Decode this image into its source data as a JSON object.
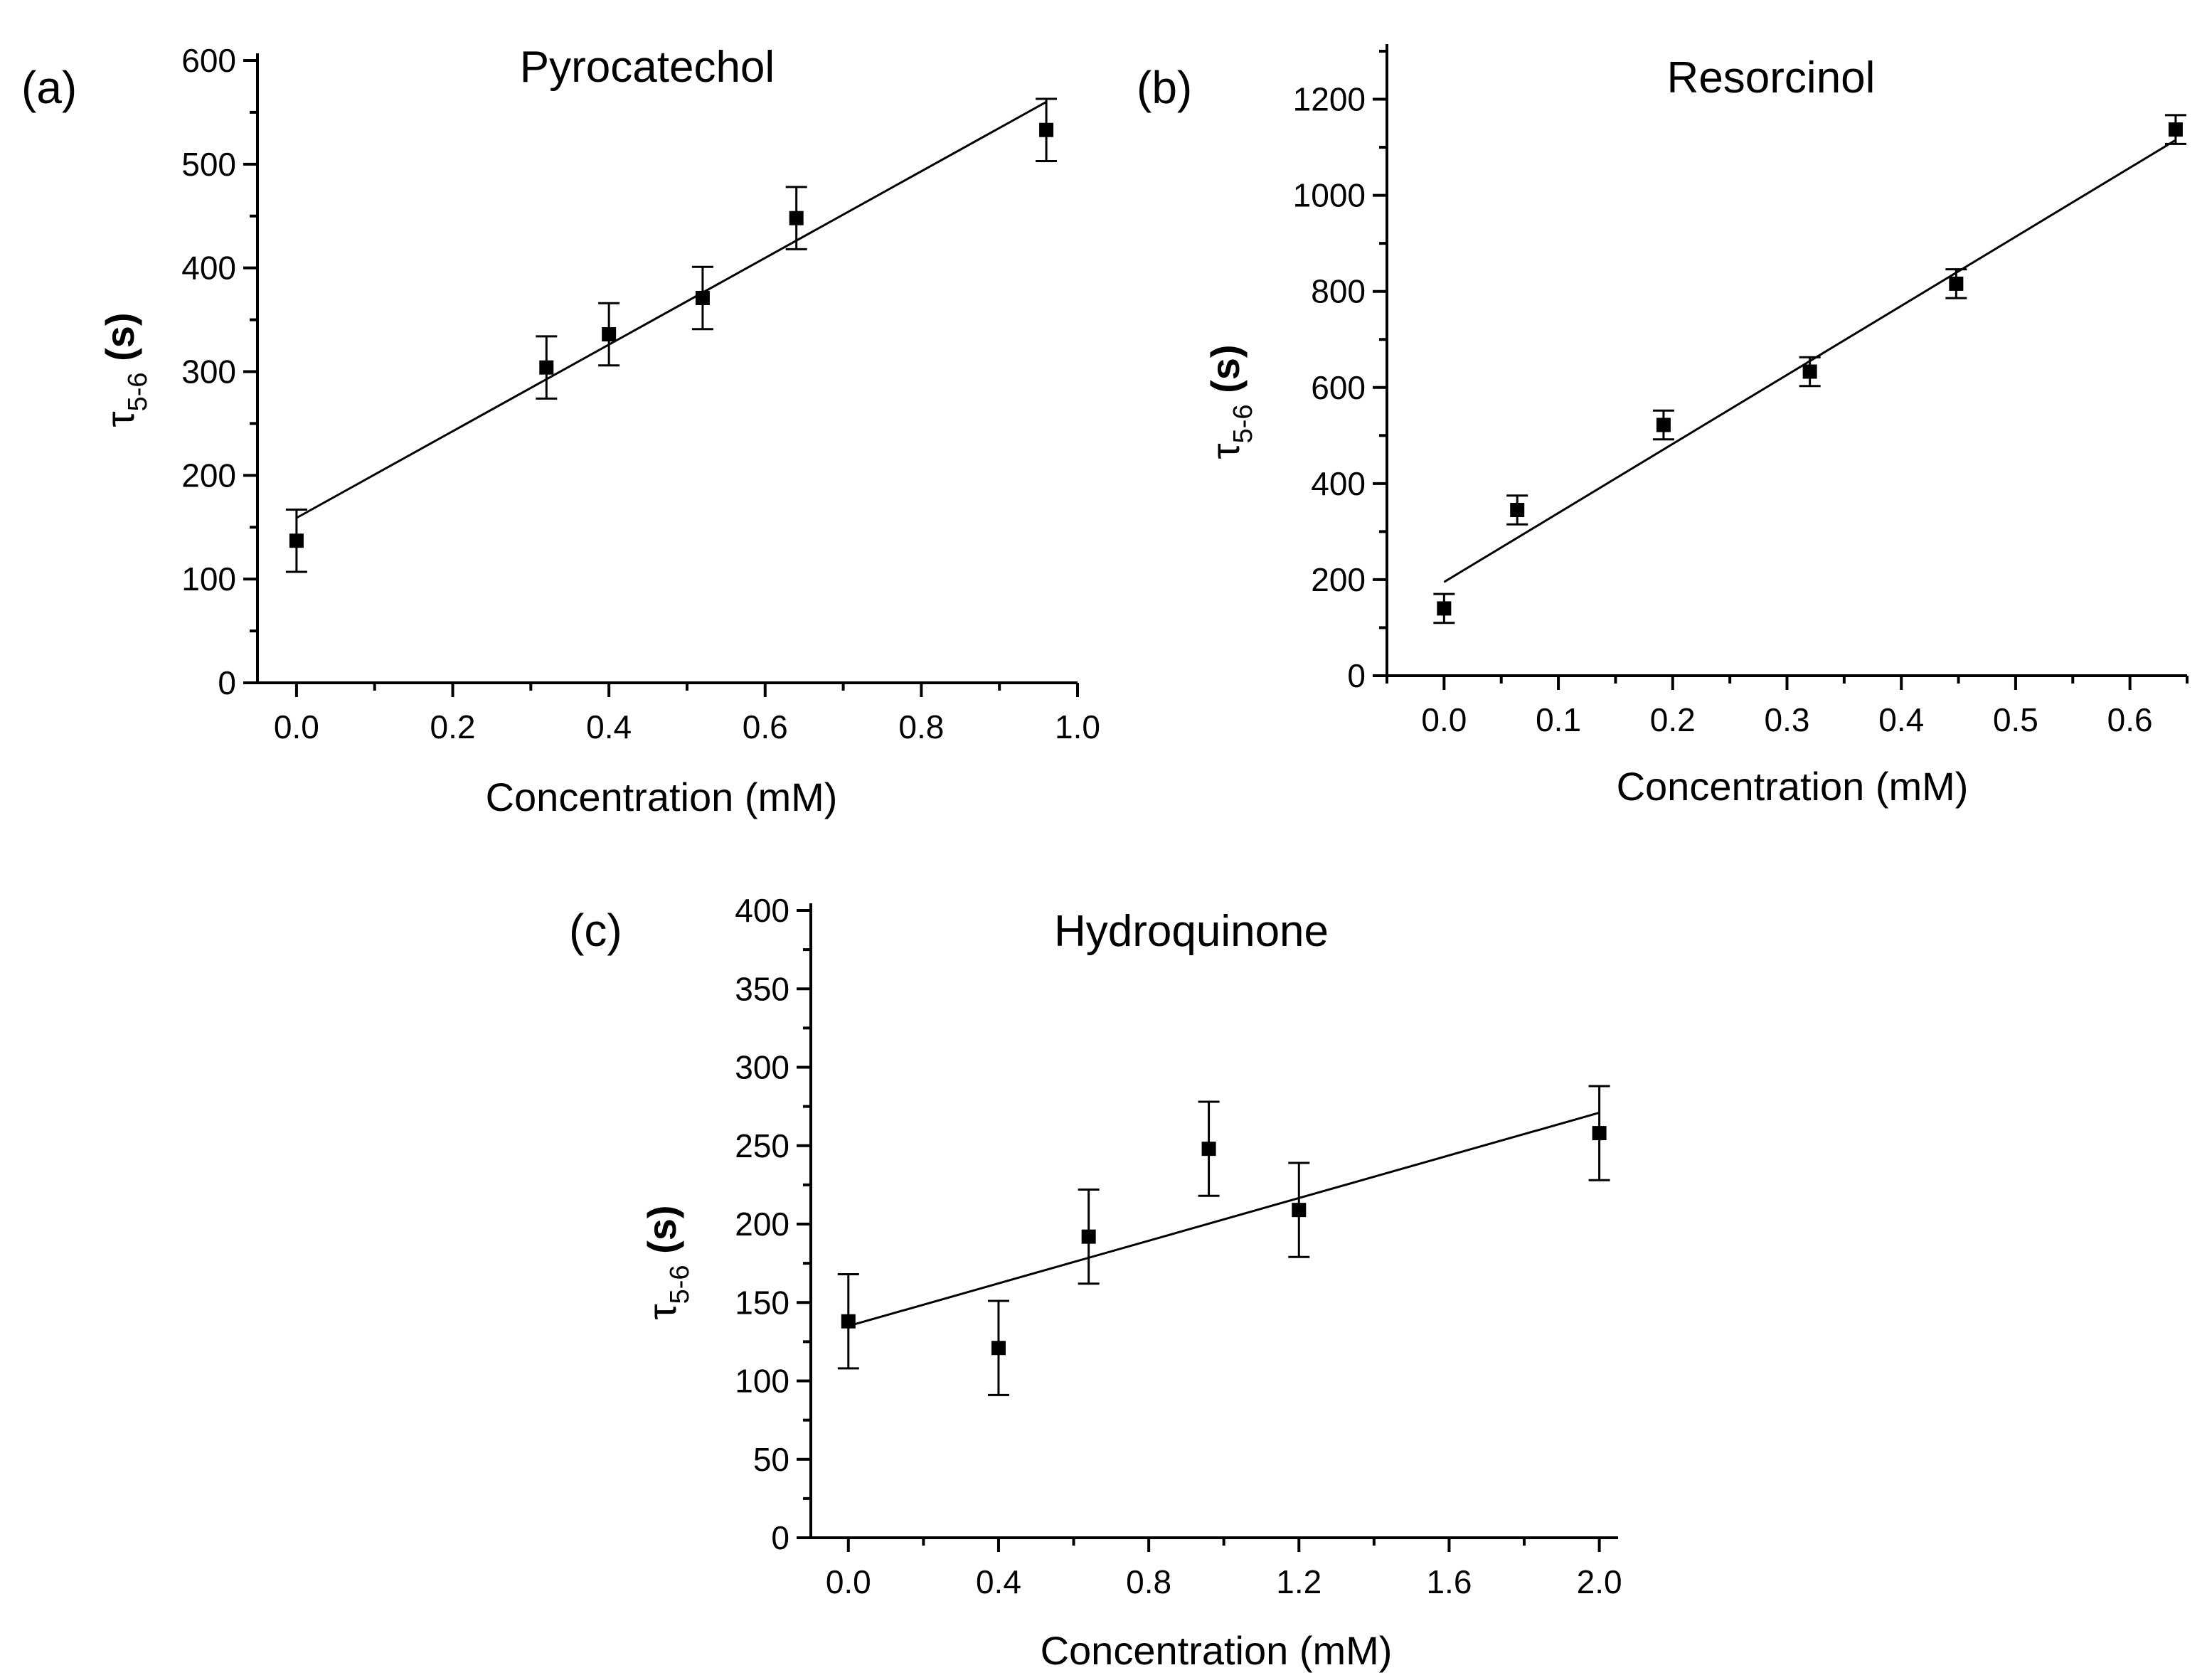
{
  "chart_data": [
    {
      "panel": "(a)",
      "type": "scatter",
      "title": "Pyrocatechol",
      "xlabel": "Concentration (mM)",
      "ylabel": {
        "symbol": "τ",
        "subscript": "5-6",
        "unit": "(s)"
      },
      "xlim": [
        -0.05,
        1.0
      ],
      "ylim": [
        0,
        600
      ],
      "xticks": [
        0.0,
        0.2,
        0.4,
        0.6,
        0.8,
        1.0
      ],
      "xtick_labels": [
        "0.0",
        "0.2",
        "0.4",
        "0.6",
        "0.8",
        "1.0"
      ],
      "yticks": [
        0,
        100,
        200,
        300,
        400,
        500,
        600
      ],
      "ytick_labels": [
        "0",
        "100",
        "200",
        "300",
        "400",
        "500",
        "600"
      ],
      "points": [
        {
          "x": 0.0,
          "y": 137,
          "err": 30
        },
        {
          "x": 0.32,
          "y": 304,
          "err": 30
        },
        {
          "x": 0.4,
          "y": 336,
          "err": 30
        },
        {
          "x": 0.52,
          "y": 371,
          "err": 30
        },
        {
          "x": 0.64,
          "y": 448,
          "err": 30
        },
        {
          "x": 0.96,
          "y": 533,
          "err": 30
        }
      ],
      "fit": {
        "x": [
          0.0,
          0.96
        ],
        "y": [
          159,
          560
        ]
      }
    },
    {
      "panel": "(b)",
      "type": "scatter",
      "title": "Resorcinol",
      "xlabel": "Concentration (mM)",
      "ylabel": {
        "symbol": "τ",
        "subscript": "5-6",
        "unit": "(s)"
      },
      "xlim": [
        -0.05,
        0.65
      ],
      "ylim": [
        0,
        1300
      ],
      "xticks": [
        0.0,
        0.1,
        0.2,
        0.3,
        0.4,
        0.5,
        0.6
      ],
      "xtick_labels": [
        "0.0",
        "0.1",
        "0.2",
        "0.3",
        "0.4",
        "0.5",
        "0.6"
      ],
      "yticks": [
        0,
        200,
        400,
        600,
        800,
        1000,
        1200
      ],
      "ytick_labels": [
        "0",
        "200",
        "400",
        "600",
        "800",
        "1000",
        "1200"
      ],
      "points": [
        {
          "x": 0.0,
          "y": 140,
          "err": 30
        },
        {
          "x": 0.064,
          "y": 345,
          "err": 30
        },
        {
          "x": 0.192,
          "y": 522,
          "err": 30
        },
        {
          "x": 0.32,
          "y": 633,
          "err": 30
        },
        {
          "x": 0.448,
          "y": 816,
          "err": 30
        },
        {
          "x": 0.64,
          "y": 1137,
          "err": 30
        }
      ],
      "fit": {
        "x": [
          0.0,
          0.64
        ],
        "y": [
          195,
          1115
        ]
      }
    },
    {
      "panel": "(c)",
      "type": "scatter",
      "title": "Hydroquinone",
      "xlabel": "Concentration (mM)",
      "ylabel": {
        "symbol": "τ",
        "subscript": "5-6",
        "unit": "(s)"
      },
      "xlim": [
        -0.1,
        2.05
      ],
      "ylim": [
        0,
        400
      ],
      "xticks": [
        0.0,
        0.4,
        0.8,
        1.2,
        1.6,
        2.0
      ],
      "xtick_labels": [
        "0.0",
        "0.4",
        "0.8",
        "1.2",
        "1.6",
        "2.0"
      ],
      "yticks": [
        0,
        50,
        100,
        150,
        200,
        250,
        300,
        350,
        400
      ],
      "ytick_labels": [
        "0",
        "50",
        "100",
        "150",
        "200",
        "250",
        "300",
        "350",
        "400"
      ],
      "points": [
        {
          "x": 0.0,
          "y": 138,
          "err": 30
        },
        {
          "x": 0.4,
          "y": 121,
          "err": 30
        },
        {
          "x": 0.64,
          "y": 192,
          "err": 30
        },
        {
          "x": 0.96,
          "y": 248,
          "err": 30
        },
        {
          "x": 1.2,
          "y": 209,
          "err": 30
        },
        {
          "x": 2.0,
          "y": 258,
          "err": 30
        }
      ],
      "fit": {
        "x": [
          0.0,
          2.0
        ],
        "y": [
          135,
          271
        ]
      }
    }
  ]
}
